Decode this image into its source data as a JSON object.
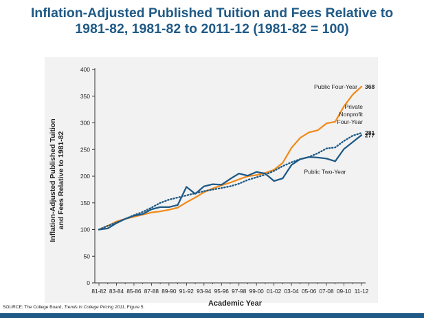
{
  "page": {
    "title_line1": "Inflation-Adjusted Published Tuition and Fees Relative to",
    "title_line2": "1981-82, 1981-82 to 2011-12 (1981-82 = 100)",
    "source_prefix": "SOURCE: The College Board, ",
    "source_title": "Trends in College Pricing 2011",
    "source_suffix": ", Figure 5."
  },
  "colors": {
    "title": "#1f5a86",
    "public_four_year": "#f08c1e",
    "private_nonprofit": "#1f5a86",
    "public_two_year": "#1f5a86",
    "plot_background": "#f2f2f2",
    "bottom_bar": "#1f5a86"
  },
  "chart_data": {
    "type": "line",
    "xlabel": "Academic Year",
    "ylabel_line1": "Inflation-Adjusted Published Tuition",
    "ylabel_line2": "and Fees Relative to 1981-82",
    "ylim": [
      0,
      400
    ],
    "yticks": [
      0,
      50,
      100,
      150,
      200,
      250,
      300,
      350,
      400
    ],
    "grid": false,
    "categories": [
      "81-82",
      "82-83",
      "83-84",
      "84-85",
      "85-86",
      "86-87",
      "87-88",
      "88-89",
      "89-90",
      "90-91",
      "91-92",
      "92-93",
      "93-94",
      "94-95",
      "95-96",
      "96-97",
      "97-98",
      "98-99",
      "99-00",
      "00-01",
      "01-02",
      "02-03",
      "03-04",
      "04-05",
      "05-06",
      "06-07",
      "07-08",
      "08-09",
      "09-10",
      "10-11",
      "11-12"
    ],
    "tick_labels": [
      "81-82",
      "83-84",
      "85-86",
      "87-88",
      "89-90",
      "91-92",
      "93-94",
      "95-96",
      "97-98",
      "99-00",
      "01-02",
      "03-04",
      "05-06",
      "07-08",
      "09-10",
      "11-12"
    ],
    "series": [
      {
        "name": "Public Four-Year",
        "end_label": "368",
        "style": "solid",
        "values": [
          100,
          107,
          115,
          120,
          124,
          128,
          132,
          134,
          137,
          141,
          151,
          160,
          170,
          177,
          183,
          188,
          194,
          200,
          202,
          206,
          212,
          225,
          253,
          272,
          282,
          286,
          299,
          302,
          331,
          353,
          368
        ]
      },
      {
        "name": "Private Nonprofit Four-Year",
        "name_lines": [
          "Private",
          "Nonprofit",
          "Four-Year"
        ],
        "end_label": "281",
        "style": "dotted",
        "values": [
          100,
          107,
          113,
          120,
          127,
          133,
          141,
          150,
          156,
          160,
          164,
          168,
          172,
          175,
          178,
          181,
          186,
          193,
          198,
          203,
          210,
          219,
          226,
          232,
          236,
          243,
          252,
          254,
          266,
          276,
          281
        ]
      },
      {
        "name": "Public Two-Year",
        "end_label": "277",
        "style": "solid",
        "values": [
          100,
          102,
          112,
          120,
          126,
          129,
          138,
          142,
          142,
          146,
          180,
          167,
          181,
          185,
          184,
          195,
          205,
          201,
          208,
          205,
          191,
          196,
          221,
          232,
          236,
          235,
          233,
          228,
          251,
          264,
          277
        ]
      }
    ]
  }
}
